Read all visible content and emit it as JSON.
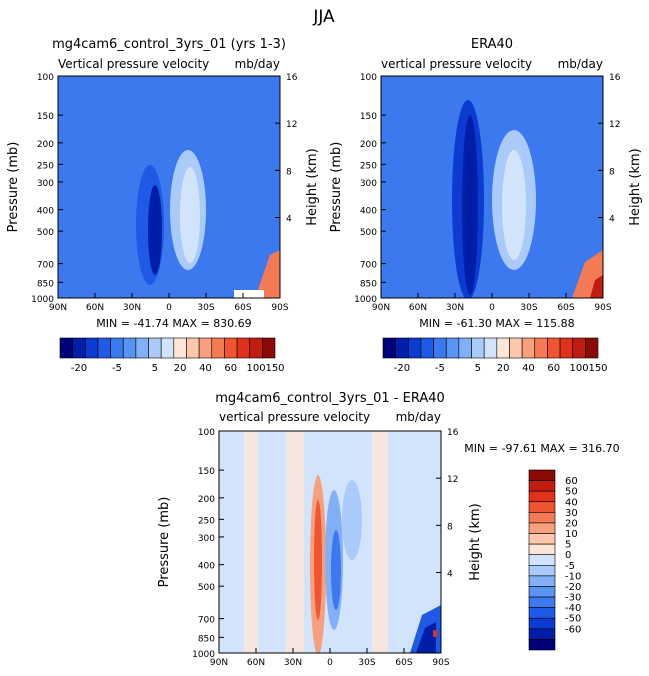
{
  "figure_title": "JJA",
  "colors": {
    "neg": [
      "#00007a",
      "#001ea8",
      "#0a3cd2",
      "#1e5ae6",
      "#3c78ee",
      "#5a94f2",
      "#82b0f6",
      "#aacbfa",
      "#d2e4fc"
    ],
    "pos": [
      "#fde6d6",
      "#fbc8ad",
      "#f8a07e",
      "#f47a55",
      "#ef552f",
      "#e0321a",
      "#c01c10",
      "#8c0a06"
    ]
  },
  "chart_data": [
    {
      "type": "heatmap",
      "title": "mg4cam6_control_3yrs_01 (yrs 1-3)",
      "subtitle": "Vertical pressure velocity",
      "units": "mb/day",
      "xlabel": "",
      "ylabel": "Pressure (mb)",
      "ylabel_right": "Height (km)",
      "x_ticks": [
        "90N",
        "60N",
        "30N",
        "0",
        "30S",
        "60S",
        "90S"
      ],
      "y_ticks": [
        "100",
        "150",
        "200",
        "250",
        "300",
        "400",
        "500",
        "700",
        "850",
        "1000"
      ],
      "y_right_ticks": [
        "16",
        "12",
        "8",
        "4"
      ],
      "stats": "MIN = -41.74   MAX = 830.69",
      "colorbar_labels": [
        "-20",
        "-5",
        "5",
        "20",
        "40",
        "60",
        "100",
        "150"
      ]
    },
    {
      "type": "heatmap",
      "title": "ERA40",
      "subtitle": "vertical pressure velocity",
      "units": "mb/day",
      "xlabel": "",
      "ylabel": "Pressure (mb)",
      "ylabel_right": "Height (km)",
      "x_ticks": [
        "90N",
        "60N",
        "30N",
        "0",
        "30S",
        "60S",
        "90S"
      ],
      "y_ticks": [
        "100",
        "150",
        "200",
        "250",
        "300",
        "400",
        "500",
        "700",
        "850",
        "1000"
      ],
      "y_right_ticks": [
        "16",
        "12",
        "8",
        "4"
      ],
      "stats": "MIN = -61.30   MAX = 115.88",
      "colorbar_labels": [
        "-20",
        "-5",
        "5",
        "20",
        "40",
        "60",
        "100",
        "150"
      ]
    },
    {
      "type": "heatmap",
      "title": "mg4cam6_control_3yrs_01 - ERA40",
      "subtitle": "vertical pressure velocity",
      "units": "mb/day",
      "xlabel": "",
      "ylabel": "Pressure (mb)",
      "ylabel_right": "Height (km)",
      "x_ticks": [
        "90N",
        "60N",
        "30N",
        "0",
        "30S",
        "60S",
        "90S"
      ],
      "y_ticks": [
        "100",
        "150",
        "200",
        "250",
        "300",
        "400",
        "500",
        "700",
        "850",
        "1000"
      ],
      "y_right_ticks": [
        "16",
        "12",
        "8",
        "4"
      ],
      "stats": "MIN = -97.61   MAX = 316.70",
      "colorbar_labels": [
        "60",
        "50",
        "40",
        "30",
        "20",
        "10",
        "5",
        "0",
        "-5",
        "-10",
        "-20",
        "-30",
        "-40",
        "-50",
        "-60"
      ]
    }
  ]
}
